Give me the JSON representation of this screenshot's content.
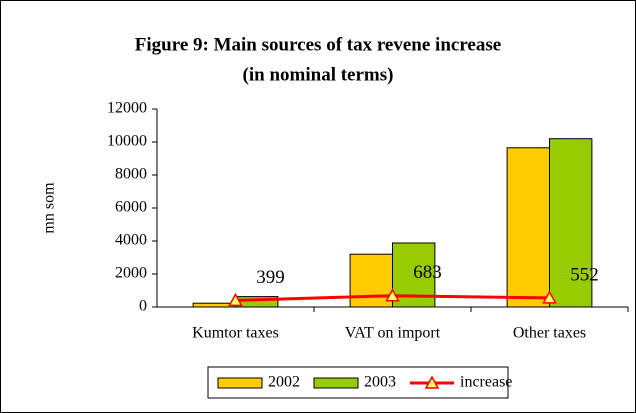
{
  "chart_data": {
    "type": "bar",
    "title": [
      "Figure 9: Main sources of tax revene increase",
      "(in nominal terms)"
    ],
    "y_label": "mn som",
    "categories": [
      "Kumtor taxes",
      "VAT on import",
      "Other taxes"
    ],
    "series": [
      {
        "name": "2002",
        "color": "#ffcc00",
        "values": [
          230,
          3200,
          9650
        ]
      },
      {
        "name": "2003",
        "color": "#99cc00",
        "values": [
          630,
          3880,
          10200
        ]
      },
      {
        "name": "increase",
        "type": "line",
        "color": "#ff0000",
        "marker_color": "#ffff66",
        "values": [
          399,
          683,
          552
        ],
        "data_labels": true
      }
    ],
    "ylim": [
      0,
      12000
    ],
    "yticks": [
      0,
      2000,
      4000,
      6000,
      8000,
      10000,
      12000
    ],
    "legend": "bottom"
  }
}
